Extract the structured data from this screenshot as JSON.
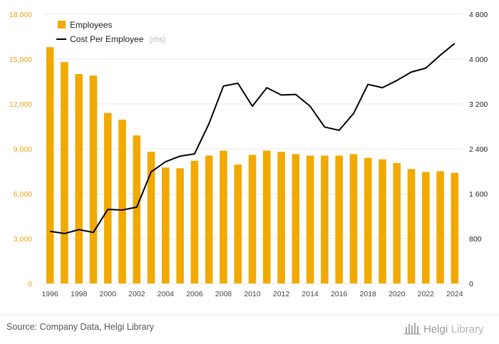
{
  "chart_data": {
    "type": "bar",
    "categories": [
      "1996",
      "1997",
      "1998",
      "1999",
      "2000",
      "2001",
      "2002",
      "2003",
      "2004",
      "2005",
      "2006",
      "2007",
      "2008",
      "2009",
      "2010",
      "2011",
      "2012",
      "2013",
      "2014",
      "2015",
      "2016",
      "2017",
      "2018",
      "2019",
      "2020",
      "2021",
      "2022",
      "2023",
      "2024"
    ],
    "x_tick_labels": [
      "1996",
      "1998",
      "2000",
      "2002",
      "2004",
      "2006",
      "2008",
      "2010",
      "2012",
      "2014",
      "2016",
      "2018",
      "2020",
      "2022",
      "2024"
    ],
    "series": [
      {
        "name": "Employees",
        "type": "bar",
        "axis": "left",
        "color": "#f2a900",
        "values": [
          15800,
          14800,
          14000,
          13900,
          11400,
          10950,
          9900,
          8800,
          7750,
          7700,
          8200,
          8550,
          8880,
          7950,
          8600,
          8880,
          8800,
          8650,
          8550,
          8550,
          8550,
          8650,
          8400,
          8300,
          8050,
          7650,
          7450,
          7500,
          7400
        ]
      },
      {
        "name": "Cost Per Employee",
        "name_suffix": "(rhs)",
        "type": "line",
        "axis": "right",
        "color": "#000000",
        "values": [
          930,
          890,
          960,
          910,
          1320,
          1310,
          1360,
          1990,
          2170,
          2270,
          2310,
          2850,
          3520,
          3570,
          3160,
          3490,
          3360,
          3370,
          3160,
          2790,
          2730,
          3030,
          3550,
          3490,
          3620,
          3770,
          3840,
          4070,
          4280
        ]
      }
    ],
    "left_axis": {
      "ylim": [
        0,
        18000
      ],
      "ticks": [
        0,
        3000,
        6000,
        9000,
        12000,
        15000,
        18000
      ],
      "tick_labels": [
        "0",
        "3,000",
        "6,000",
        "9,000",
        "12,000",
        "15,000",
        "18,000"
      ]
    },
    "right_axis": {
      "ylim": [
        0,
        4800
      ],
      "ticks": [
        0,
        800,
        1600,
        2400,
        3200,
        4000,
        4800
      ],
      "tick_labels": [
        "0",
        "800",
        "1 600",
        "2 400",
        "3 200",
        "4 000",
        "4 800"
      ]
    },
    "title": "",
    "xlabel": "",
    "ylabel": "",
    "legend_position": "top-left",
    "grid": true
  },
  "footer": {
    "source": "Source: Company Data, Helgi Library",
    "brand_primary": "Helgi",
    "brand_secondary": "Library"
  },
  "colors": {
    "accent": "#f2a900",
    "line": "#000000",
    "grid": "#e8e8e8"
  }
}
